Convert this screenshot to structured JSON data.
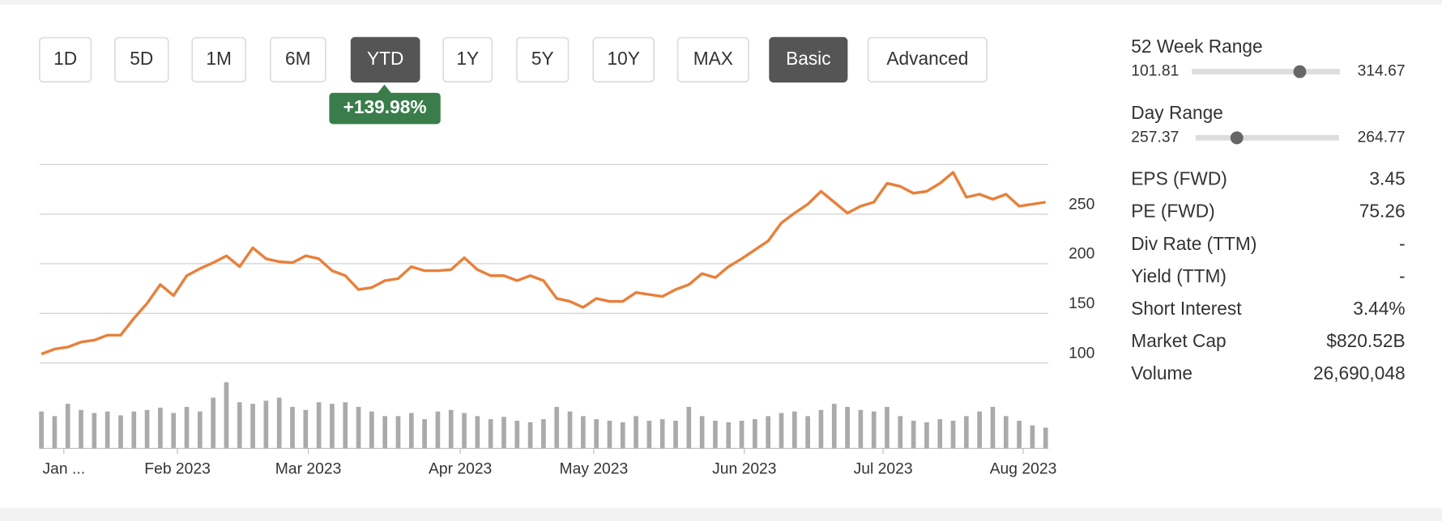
{
  "buttons": [
    {
      "label": "1D",
      "active": false
    },
    {
      "label": "5D",
      "active": false
    },
    {
      "label": "1M",
      "active": false
    },
    {
      "label": "6M",
      "active": false
    },
    {
      "label": "YTD",
      "active": true
    },
    {
      "label": "1Y",
      "active": false
    },
    {
      "label": "5Y",
      "active": false
    },
    {
      "label": "10Y",
      "active": false
    },
    {
      "label": "MAX",
      "active": false
    },
    {
      "label": "Basic",
      "active": true
    },
    {
      "label": "Advanced",
      "active": false
    }
  ],
  "change_badge": "+139.98%",
  "chart_data": {
    "type": "line",
    "color": "#e8803a",
    "values": [
      109,
      114,
      116,
      121,
      123,
      128,
      128,
      145,
      160,
      179,
      168,
      188,
      195,
      201,
      208,
      197,
      216,
      205,
      202,
      201,
      208,
      205,
      193,
      188,
      174,
      176,
      183,
      185,
      197,
      193,
      193,
      194,
      206,
      194,
      188,
      188,
      183,
      188,
      183,
      165,
      162,
      156,
      165,
      162,
      162,
      171,
      169,
      167,
      174,
      179,
      190,
      186,
      197,
      205,
      214,
      223,
      241,
      251,
      260,
      273,
      262,
      251,
      258,
      262,
      281,
      278,
      271,
      273,
      281,
      292,
      267,
      270,
      265,
      270,
      258,
      260,
      262
    ],
    "volume": [
      48,
      42,
      58,
      50,
      46,
      48,
      43,
      48,
      50,
      53,
      46,
      54,
      48,
      66,
      86,
      60,
      58,
      62,
      66,
      54,
      50,
      60,
      58,
      60,
      54,
      48,
      42,
      42,
      46,
      38,
      48,
      50,
      46,
      42,
      38,
      41,
      36,
      34,
      38,
      54,
      48,
      42,
      38,
      36,
      34,
      42,
      36,
      38,
      36,
      54,
      42,
      36,
      34,
      36,
      38,
      42,
      46,
      48,
      42,
      50,
      58,
      54,
      50,
      48,
      54,
      42,
      36,
      34,
      38,
      36,
      42,
      48,
      54,
      42,
      36,
      30,
      27
    ],
    "volume_color": "#aaaaaa",
    "xlim": [
      0,
      76
    ],
    "xticks": [
      {
        "value": 1.7,
        "label": "Jan ..."
      },
      {
        "value": 10.3,
        "label": "Feb 2023"
      },
      {
        "value": 20.2,
        "label": "Mar 2023"
      },
      {
        "value": 31.7,
        "label": "Apr 2023"
      },
      {
        "value": 41.8,
        "label": "May 2023"
      },
      {
        "value": 53.2,
        "label": "Jun 2023"
      },
      {
        "value": 63.7,
        "label": "Jul 2023"
      },
      {
        "value": 74.3,
        "label": "Aug 2023"
      }
    ],
    "ylim": [
      100,
      300
    ],
    "yticks": [
      100,
      150,
      200,
      250
    ],
    "grid": true
  },
  "ranges": [
    {
      "title": "52 Week Range",
      "low": 101.81,
      "high": 314.67,
      "current": 257
    },
    {
      "title": "Day Range",
      "low": 257.37,
      "high": 264.77,
      "current": 259.5
    }
  ],
  "stats": [
    {
      "label": "EPS (FWD)",
      "value": "3.45"
    },
    {
      "label": "PE (FWD)",
      "value": "75.26"
    },
    {
      "label": "Div Rate (TTM)",
      "value": "-"
    },
    {
      "label": "Yield (TTM)",
      "value": "-"
    },
    {
      "label": "Short Interest",
      "value": "3.44%"
    },
    {
      "label": "Market Cap",
      "value": "$820.52B"
    },
    {
      "label": "Volume",
      "value": "26,690,048"
    }
  ]
}
